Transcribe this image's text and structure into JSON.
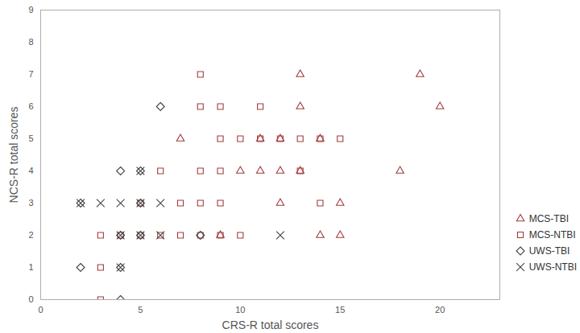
{
  "chart_data": {
    "type": "scatter",
    "x_label": "CRS-R total scores",
    "y_label": "NCS-R total scores",
    "xlim": [
      0,
      23
    ],
    "xticks": [
      0,
      5,
      10,
      15,
      20
    ],
    "ylim": [
      0,
      9
    ],
    "yticks": [
      0,
      1,
      2,
      3,
      4,
      5,
      6,
      7,
      8,
      9
    ],
    "grid": false,
    "legend": "right",
    "series": [
      {
        "name": "MCS-TBI",
        "color": "#a33a3a",
        "marker": "triangle",
        "x": [
          13,
          19,
          20,
          13,
          7,
          11,
          12,
          14,
          10,
          11,
          12,
          13,
          18,
          12,
          15,
          14,
          15,
          9
        ],
        "values": [
          7,
          7,
          6,
          6,
          5,
          5,
          5,
          5,
          4,
          4,
          4,
          4,
          4,
          3,
          3,
          2,
          2,
          2
        ]
      },
      {
        "name": "MCS-NTBI",
        "color": "#a33a3a",
        "marker": "square",
        "x": [
          8,
          8,
          9,
          11,
          9,
          10,
          11,
          12,
          13,
          14,
          15,
          6,
          8,
          9,
          13,
          5,
          7,
          8,
          9,
          14,
          3,
          4,
          5,
          6,
          7,
          8,
          9,
          10,
          3,
          3
        ],
        "values": [
          7,
          6,
          6,
          6,
          5,
          5,
          5,
          5,
          5,
          5,
          5,
          4,
          4,
          4,
          4,
          3,
          3,
          3,
          3,
          3,
          2,
          2,
          2,
          2,
          2,
          2,
          2,
          2,
          1,
          0
        ]
      },
      {
        "name": "UWS-TBI",
        "color": "#444444",
        "marker": "diamond",
        "x": [
          6,
          4,
          5,
          2,
          5,
          4,
          5,
          8,
          2,
          4,
          4
        ],
        "values": [
          6,
          4,
          4,
          3,
          3,
          2,
          2,
          2,
          1,
          1,
          0
        ]
      },
      {
        "name": "UWS-NTBI",
        "color": "#444444",
        "marker": "times",
        "x": [
          2,
          3,
          4,
          5,
          6,
          4,
          5,
          6,
          12,
          4,
          5
        ],
        "values": [
          3,
          3,
          3,
          3,
          3,
          2,
          2,
          2,
          2,
          1,
          4
        ]
      }
    ]
  }
}
